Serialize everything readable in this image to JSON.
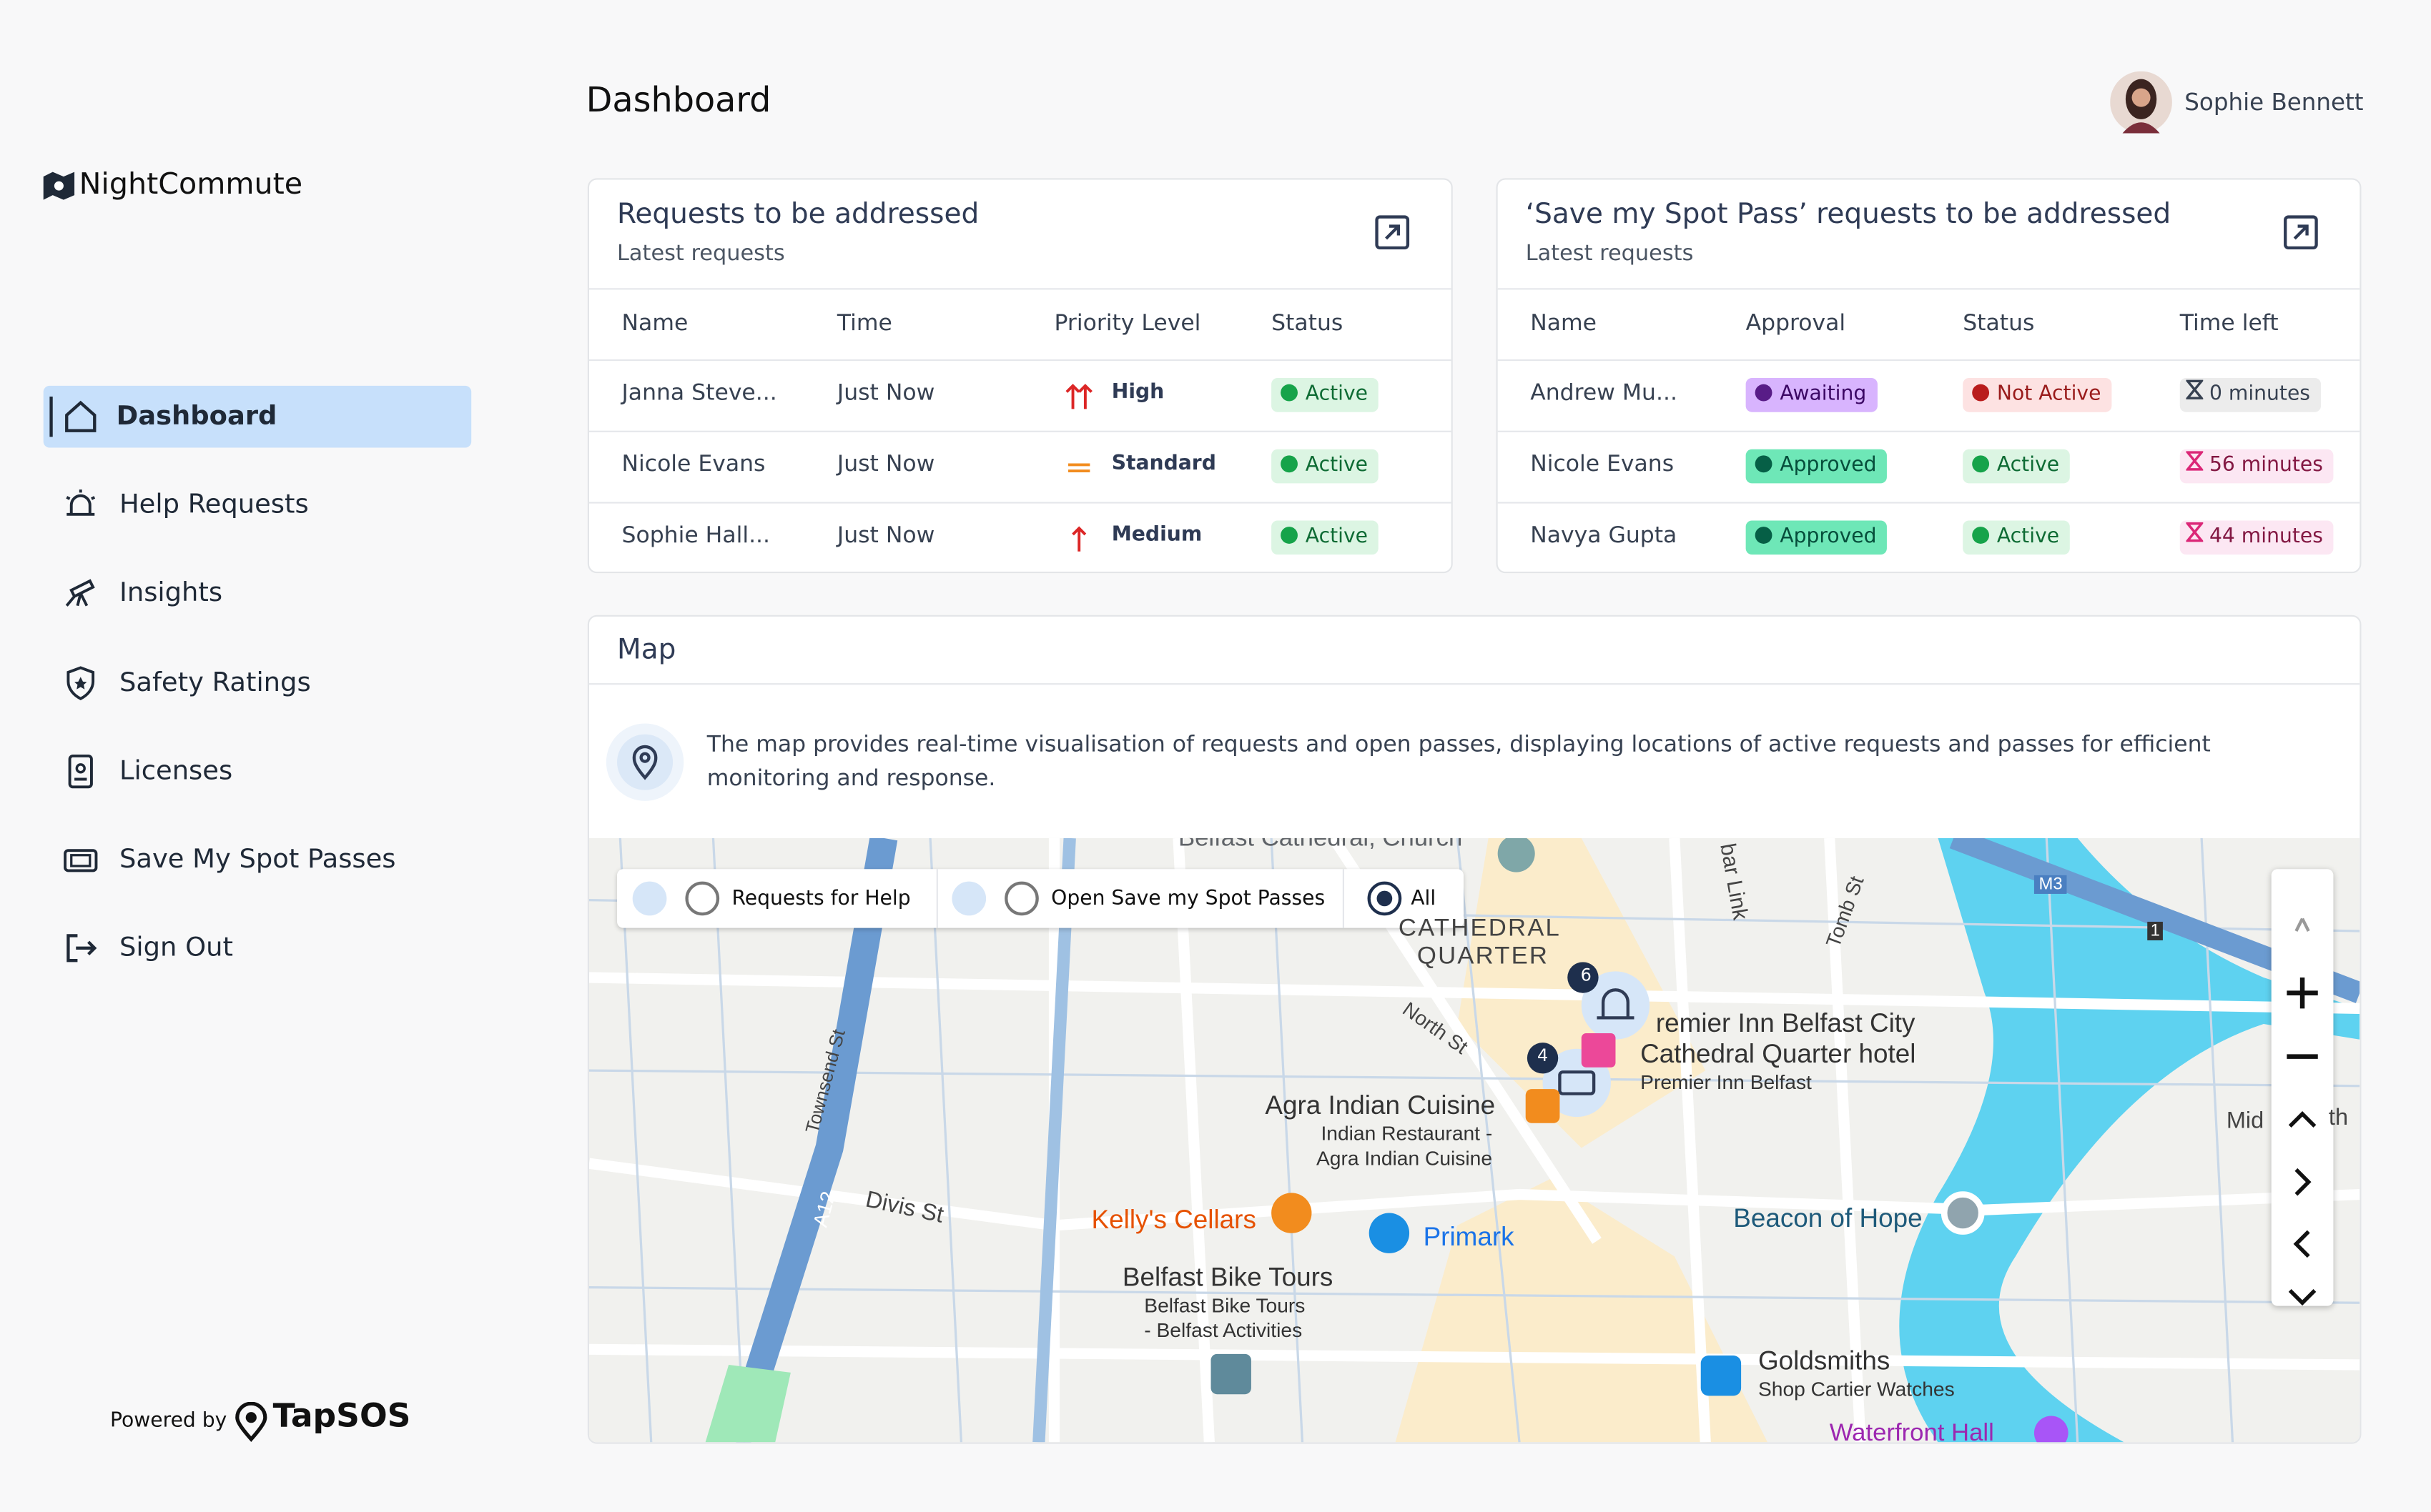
{
  "brand": {
    "name": "NightCommute",
    "powered_by": "Powered by",
    "partner": "TapSOS"
  },
  "nav": [
    "Dashboard",
    "Help Requests",
    "Insights",
    "Safety Ratings",
    "Licenses",
    "Save My Spot Passes",
    "Sign Out"
  ],
  "header": {
    "title": "Dashboard",
    "user": "Sophie Bennett"
  },
  "requests": {
    "title": "Requests to be addressed",
    "subtitle": "Latest requests",
    "columns": [
      "Name",
      "Time",
      "Priority Level",
      "Status"
    ],
    "rows": [
      [
        "Janna Steve...",
        "Just Now",
        "High",
        "Active"
      ],
      [
        "Nicole Evans",
        "Just Now",
        "Standard",
        "Active"
      ],
      [
        "Sophie Hall...",
        "Just Now",
        "Medium",
        "Active"
      ]
    ]
  },
  "passes": {
    "title": "‘Save my Spot Pass’ requests to be addressed",
    "subtitle": "Latest requests",
    "columns": [
      "Name",
      "Approval",
      "Status",
      "Time left"
    ],
    "rows": [
      [
        "Andrew Mu...",
        "Awaiting",
        "Not Active",
        "0 minutes"
      ],
      [
        "Nicole Evans",
        "Approved",
        "Active",
        "56 minutes"
      ],
      [
        "Navya Gupta",
        "Approved",
        "Active",
        "44 minutes"
      ]
    ]
  },
  "map": {
    "title": "Map",
    "description": "The map provides real-time visualisation of requests and open passes, displaying locations of active requests and passes for efficient monitoring and response.",
    "filters": [
      "Requests for Help",
      "Open Save my Spot Passes",
      "All"
    ],
    "clusters": [
      "6",
      "4"
    ],
    "labels": [
      "Belfast Cathedral, Church",
      "CATHEDRAL",
      "QUARTER",
      "North St",
      "Townsend St",
      "Divis St",
      "A12",
      "Agra Indian Cuisine",
      "Indian Restaurant -",
      "Agra Indian Cuisine",
      "Kelly's Cellars",
      "Primark",
      "Belfast Bike Tours",
      "Belfast Bike Tours",
      "- Belfast Activities",
      "remier Inn Belfast City",
      "Cathedral Quarter hotel",
      "Premier Inn Belfast",
      "Beacon of Hope",
      "Goldsmiths",
      "Shop Cartier Watches",
      "Waterfront Hall",
      "bar Link",
      "Tomb St",
      "M3",
      "1",
      "Mid",
      "th"
    ]
  }
}
